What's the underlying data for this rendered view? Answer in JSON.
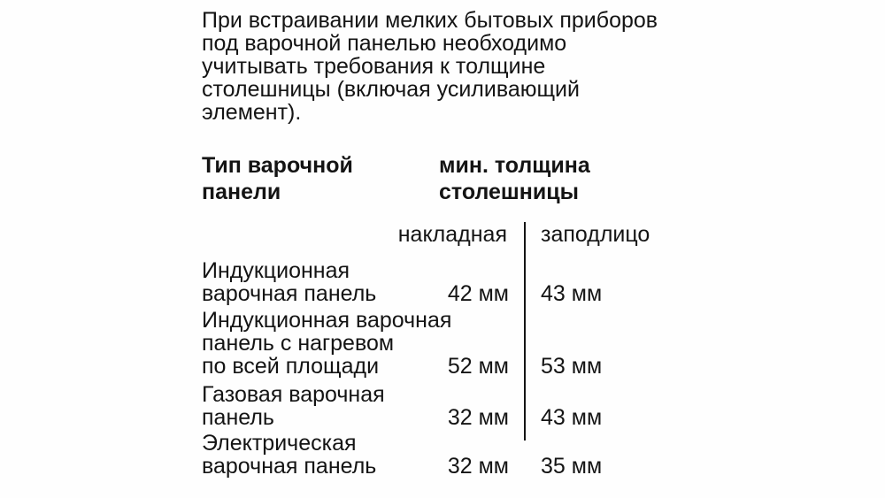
{
  "page": {
    "intro_paragraph": "При встраивании мелких бытовых приборов\nпод варочной панелью необходимо\nучитывать требования к толщине\nстолешницы (включая усиливающий\nэлемент)."
  },
  "table": {
    "column_headers": {
      "type": "Тип варочной\nпанели",
      "thickness": "мин. толщина\nстолешницы"
    },
    "sub_headers": {
      "surface_mounted": "накладная",
      "flush_mounted": "заподлицо"
    },
    "rows": [
      {
        "label": "Индукционная\nварочная панель",
        "surface_mounted": "42 мм",
        "flush_mounted": "43 мм"
      },
      {
        "label": "Индукционная варочная\nпанель с нагревом\nпо всей площади",
        "surface_mounted": "52 мм",
        "flush_mounted": "53 мм"
      },
      {
        "label": "Газовая варочная\nпанель",
        "surface_mounted": "32 мм",
        "flush_mounted": "43 мм"
      },
      {
        "label": "Электрическая\nварочная панель",
        "surface_mounted": "32 мм",
        "flush_mounted": "35 мм"
      }
    ]
  },
  "colors": {
    "background": "#fefefe",
    "text": "#141414",
    "divider": "#141414"
  }
}
